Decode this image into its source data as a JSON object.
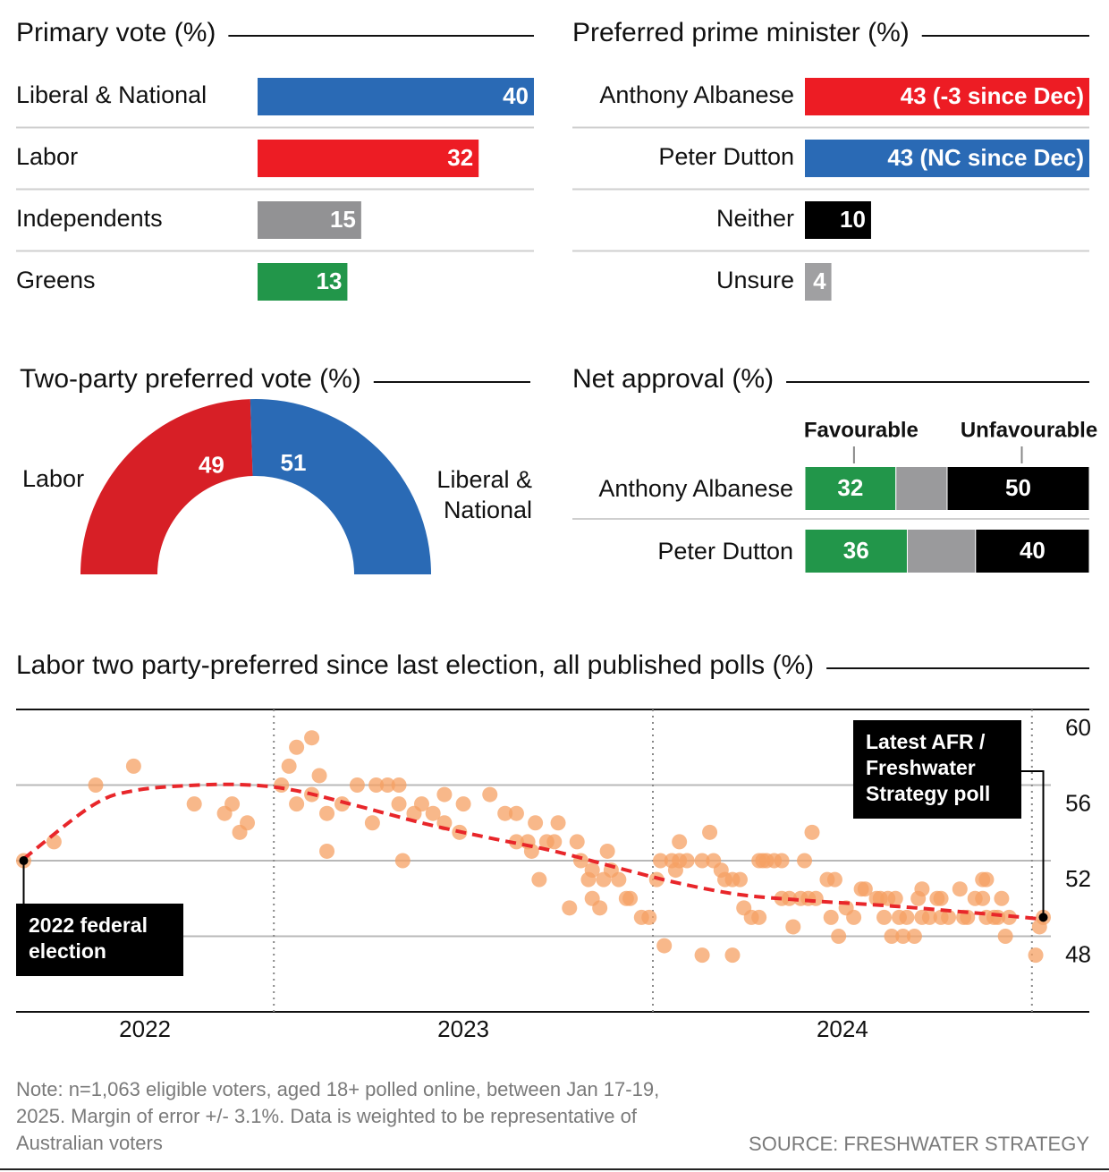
{
  "chart_data": [
    {
      "type": "bar",
      "orientation": "horizontal",
      "title": "Primary vote (%)",
      "categories": [
        "Liberal & National",
        "Labor",
        "Independents",
        "Greens"
      ],
      "values": [
        40,
        32,
        15,
        13
      ],
      "colors": [
        "#2a6ab5",
        "#ed1c24",
        "#929294",
        "#22964a"
      ]
    },
    {
      "type": "bar",
      "orientation": "horizontal",
      "title": "Preferred prime minister (%)",
      "categories": [
        "Anthony Albanese",
        "Peter Dutton",
        "Neither",
        "Unsure"
      ],
      "values": [
        43,
        43,
        10,
        4
      ],
      "value_labels": [
        "43 (-3 since Dec)",
        "43 (NC since Dec)",
        "10",
        "4"
      ],
      "colors": [
        "#ed1c24",
        "#2a6ab5",
        "#000000",
        "#a0a0a2"
      ]
    },
    {
      "type": "donut",
      "half": true,
      "title": "Two-party preferred vote (%)",
      "categories": [
        "Labor",
        "Liberal & National"
      ],
      "values": [
        49,
        51
      ],
      "colors": [
        "#d71f26",
        "#2a6ab5"
      ]
    },
    {
      "type": "stacked_bar",
      "orientation": "horizontal",
      "title": "Net approval (%)",
      "categories": [
        "Anthony Albanese",
        "Peter Dutton"
      ],
      "series": [
        {
          "name": "Favourable",
          "color": "#22964a",
          "values": [
            32,
            36
          ]
        },
        {
          "color": "#9a9a9c",
          "values": [
            18,
            24
          ]
        },
        {
          "name": "Unfavourable",
          "color": "#000000",
          "values": [
            50,
            40
          ]
        }
      ]
    },
    {
      "type": "scatter",
      "title": "Labor two party-preferred since last election, all published polls (%)",
      "xlim": [
        2022.32,
        2025.05
      ],
      "ylim": [
        44,
        60
      ],
      "yticks": [
        48,
        52,
        56,
        60
      ],
      "xticks": [
        {
          "value": 2022,
          "label": "2022"
        },
        {
          "value": 2023,
          "label": "2023"
        },
        {
          "value": 2024,
          "label": "2024"
        }
      ],
      "grid": true,
      "annotations": [
        "2022 federal election",
        "Latest AFR / Freshwater Strategy poll"
      ],
      "series": [
        {
          "type": "scatter",
          "color": "#f6a063",
          "x": [
            2022.34,
            2022.42,
            2022.53,
            2022.63,
            2022.79,
            2022.87,
            2022.89,
            2022.91,
            2022.93,
            2023.02,
            2023.04,
            2023.06,
            2023.1,
            2023.06,
            2023.12,
            2023.1,
            2023.14,
            2023.14,
            2023.18,
            2023.22,
            2023.26,
            2023.27,
            2023.3,
            2023.33,
            2023.33,
            2023.34,
            2023.37,
            2023.39,
            2023.42,
            2023.45,
            2023.45,
            2023.49,
            2023.5,
            2023.57,
            2023.61,
            2023.64,
            2023.64,
            2023.67,
            2023.68,
            2023.69,
            2023.7,
            2023.72,
            2023.74,
            2023.75,
            2023.78,
            2023.8,
            2023.81,
            2023.83,
            2023.84,
            2023.84,
            2023.86,
            2023.87,
            2023.88,
            2023.89,
            2023.91,
            2023.93,
            2023.94,
            2023.97,
            2023.99,
            2024.01,
            2024.02,
            2024.03,
            2024.05,
            2024.06,
            2024.07,
            2024.07,
            2024.09,
            2024.13,
            2024.13,
            2024.15,
            2024.16,
            2024.18,
            2024.19,
            2024.21,
            2024.21,
            2024.23,
            2024.24,
            2024.26,
            2024.28,
            2024.28,
            2024.29,
            2024.3,
            2024.32,
            2024.34,
            2024.34,
            2024.36,
            2024.37,
            2024.39,
            2024.4,
            2024.41,
            2024.42,
            2024.43,
            2024.46,
            2024.47,
            2024.48,
            2024.49,
            2024.51,
            2024.53,
            2024.55,
            2024.56,
            2024.59,
            2024.6,
            2024.61,
            2024.62,
            2024.63,
            2024.64,
            2024.65,
            2024.66,
            2024.67,
            2024.69,
            2024.7,
            2024.71,
            2024.71,
            2024.73,
            2024.75,
            2024.76,
            2024.76,
            2024.78,
            2024.81,
            2024.82,
            2024.83,
            2024.85,
            2024.87,
            2024.87,
            2024.88,
            2024.88,
            2024.9,
            2024.91,
            2024.92,
            2024.93,
            2024.94,
            2025.01,
            2025.02,
            2025.03
          ],
          "values": [
            52,
            53,
            56,
            57,
            55,
            54.5,
            55,
            53.5,
            54,
            56,
            57,
            58,
            58.5,
            55,
            56.5,
            55.5,
            54.5,
            52.5,
            55,
            56,
            54,
            56,
            56,
            56,
            55,
            52,
            54.5,
            55,
            54.5,
            55.5,
            54,
            53.5,
            55,
            55.5,
            54.5,
            54.5,
            53,
            53,
            52.5,
            54,
            51,
            53,
            53,
            54,
            49.5,
            53,
            52,
            51,
            50,
            51.5,
            49.5,
            51,
            52.5,
            51.5,
            51,
            50,
            50,
            49,
            49,
            51,
            52,
            47.5,
            52,
            51.5,
            53,
            52,
            52,
            47,
            52,
            53.5,
            52,
            51.5,
            51,
            47,
            51,
            51,
            49.5,
            49,
            52,
            49,
            52,
            52,
            52,
            52,
            50,
            50,
            48.5,
            50,
            52,
            50,
            53.5,
            50,
            51,
            49,
            51,
            48,
            49.5,
            49,
            50.5,
            50.5,
            50,
            50,
            49,
            50,
            48,
            50,
            49,
            48,
            49,
            48,
            50,
            50.5,
            49,
            49,
            50,
            49,
            50,
            49,
            50.5,
            49,
            49,
            50,
            51,
            50,
            49,
            51,
            49,
            49,
            50,
            48,
            49,
            47,
            48.5,
            49
          ]
        },
        {
          "type": "line",
          "color": "#e8262a",
          "dashed": true,
          "x": [
            2022.34,
            2022.52,
            2022.63,
            2022.8,
            2022.94,
            2023.06,
            2023.22,
            2023.41,
            2023.57,
            2023.74,
            2023.93,
            2024.07,
            2024.23,
            2024.4,
            2024.63,
            2024.87,
            2025.03
          ],
          "values": [
            52.1,
            54.9,
            55.7,
            56,
            56,
            55.7,
            54.9,
            53.9,
            53.2,
            52.5,
            51.5,
            50.8,
            50.2,
            49.9,
            49.6,
            49.2,
            48.9
          ]
        }
      ]
    }
  ],
  "note": "Note: n=1,063 eligible voters, aged 18+ polled online, between Jan 17-19, 2025. Margin of error +/- 3.1%. Data is weighted to be representative of Australian voters",
  "source": "SOURCE: FRESHWATER STRATEGY"
}
